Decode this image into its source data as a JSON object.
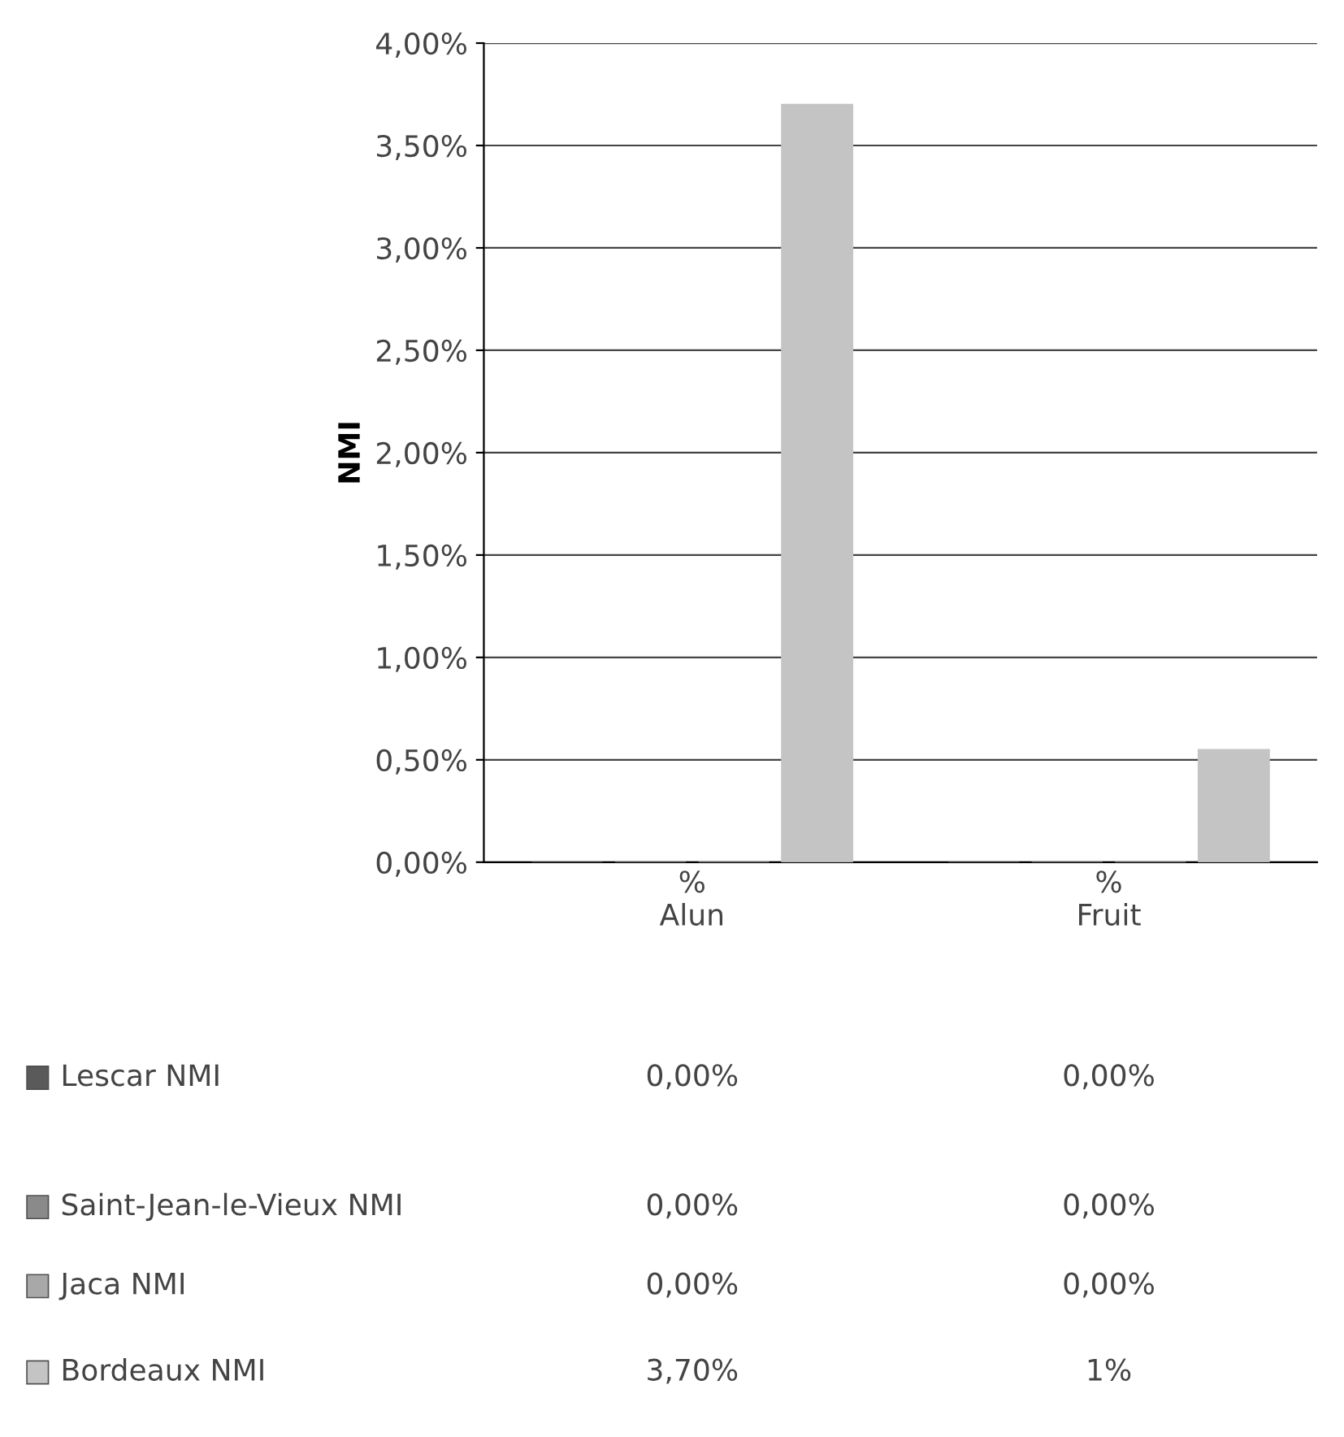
{
  "chart_data": {
    "type": "bar",
    "ylabel": "NMI",
    "categories": [
      "%\nAlun",
      "%\nFruit"
    ],
    "series": [
      {
        "name": "Lescar NMI",
        "color": "#5a5a5a",
        "values": [
          0,
          0
        ],
        "value_labels": [
          "0,00%",
          "0,00%"
        ]
      },
      {
        "name": "Saint-Jean-le-Vieux NMI",
        "color": "#8a8a8a",
        "values": [
          0,
          0
        ],
        "value_labels": [
          "0,00%",
          "0,00%"
        ]
      },
      {
        "name": "Jaca NMI",
        "color": "#a8a8a8",
        "values": [
          0,
          0
        ],
        "value_labels": [
          "0,00%",
          "0,00%"
        ]
      },
      {
        "name": "Bordeaux NMI",
        "color": "#c4c4c4",
        "values": [
          3.7,
          0.55
        ],
        "value_labels": [
          "3,70%",
          "1%"
        ]
      }
    ],
    "ylim": [
      0,
      4
    ],
    "yticks": [
      {
        "value": 0,
        "label": "0,00%"
      },
      {
        "value": 0.5,
        "label": "0,50%"
      },
      {
        "value": 1,
        "label": "1,00%"
      },
      {
        "value": 1.5,
        "label": "1,50%"
      },
      {
        "value": 2,
        "label": "2,00%"
      },
      {
        "value": 2.5,
        "label": "2,50%"
      },
      {
        "value": 3,
        "label": "3,00%"
      },
      {
        "value": 3.5,
        "label": "3,50%"
      },
      {
        "value": 4,
        "label": "4,00%"
      }
    ],
    "grid": "y",
    "legend": "bottom"
  }
}
